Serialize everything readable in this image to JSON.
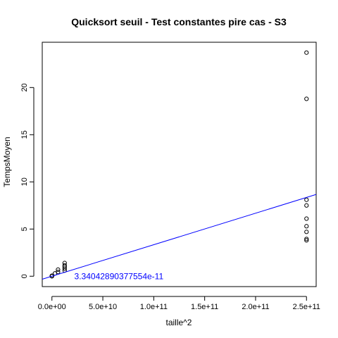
{
  "chart_data": {
    "type": "scatter",
    "title": "Quicksort seuil - Test constantes pire cas - S3",
    "xlabel": "taille^2",
    "ylabel": "TempsMoyen",
    "xlim": [
      -9500000000,
      259500000000
    ],
    "ylim": [
      -1.1,
      24.8
    ],
    "x_ticks": [
      0,
      50000000000,
      100000000000,
      150000000000,
      200000000000,
      250000000000
    ],
    "x_tick_labels": [
      "0.0e+00",
      "5.0e+10",
      "1.0e+11",
      "1.5e+11",
      "2.0e+11",
      "2.5e+11"
    ],
    "y_ticks": [
      0,
      5,
      10,
      15,
      20
    ],
    "y_tick_labels": [
      "0",
      "5",
      "10",
      "15",
      "20"
    ],
    "grid": false,
    "legend": "none",
    "series": [
      {
        "points": [
          {
            "x": 0,
            "y": 0.0
          },
          {
            "x": 0,
            "y": 0.01
          },
          {
            "x": 0,
            "y": 0.03
          },
          {
            "x": 0,
            "y": 0.05
          },
          {
            "x": 3000000000,
            "y": 0.3
          },
          {
            "x": 6000000000,
            "y": 0.45
          },
          {
            "x": 6000000000,
            "y": 0.7
          },
          {
            "x": 12500000000,
            "y": 0.6
          },
          {
            "x": 12500000000,
            "y": 0.8
          },
          {
            "x": 12500000000,
            "y": 1.0
          },
          {
            "x": 12500000000,
            "y": 1.15
          },
          {
            "x": 12500000000,
            "y": 1.4
          },
          {
            "x": 250000000000,
            "y": 3.8
          },
          {
            "x": 250000000000,
            "y": 3.95
          },
          {
            "x": 250000000000,
            "y": 4.7
          },
          {
            "x": 250000000000,
            "y": 5.3
          },
          {
            "x": 250000000000,
            "y": 6.1
          },
          {
            "x": 250000000000,
            "y": 7.5
          },
          {
            "x": 250000000000,
            "y": 8.1
          },
          {
            "x": 250000000000,
            "y": 18.8
          },
          {
            "x": 250000000000,
            "y": 23.7
          }
        ]
      }
    ],
    "fit_line": {
      "intercept": 0,
      "slope": 3.34042890377554e-11,
      "color": "#0000ff"
    },
    "annotation": {
      "text": "3.34042890377554e-11",
      "x": 22000000000,
      "y": 0,
      "color": "#0000ff"
    }
  }
}
